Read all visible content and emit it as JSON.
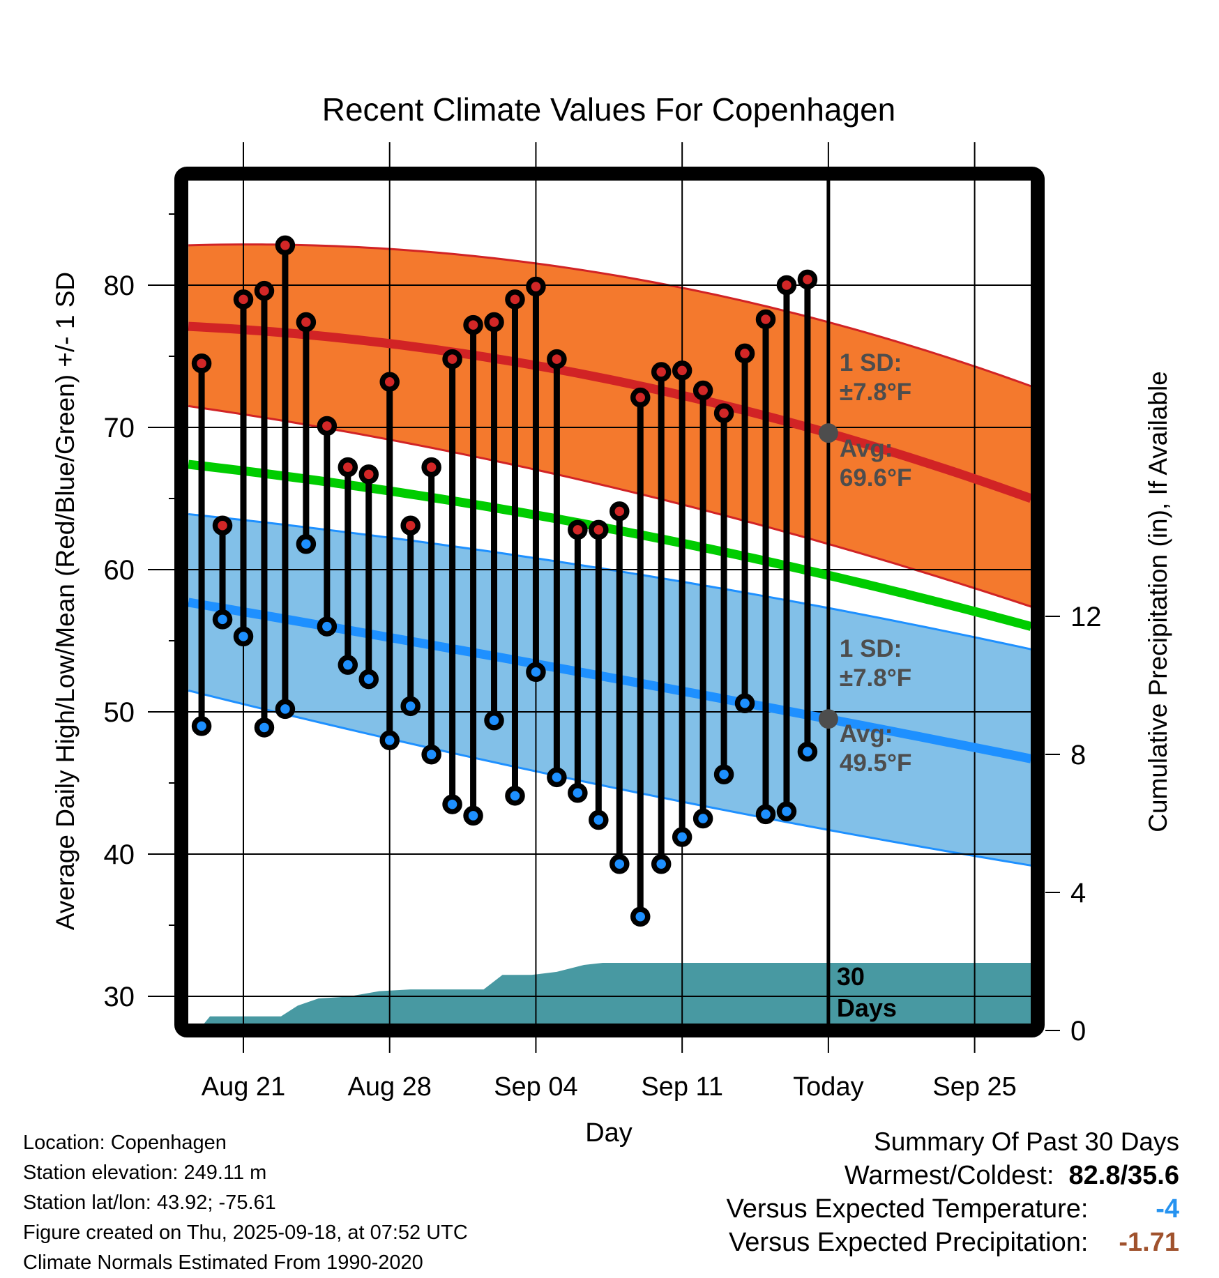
{
  "chart_data": {
    "type": "line",
    "title": "Recent Climate Values For Copenhagen",
    "xlabel": "Day",
    "ylabel": "Average Daily High/Low/Mean (Red/Blue/Green) +/- 1 SD",
    "y2label": "Cumulative Precipitation (in), If Available",
    "ylim": [
      28.1,
      87.3
    ],
    "y2lim": [
      0,
      24.6
    ],
    "yticks": [
      30,
      40,
      50,
      60,
      70,
      80
    ],
    "yticks_minor": [
      35,
      45,
      55,
      65,
      75,
      85
    ],
    "y2ticks": [
      0,
      4,
      8,
      12
    ],
    "xlim_day_offset": [
      -2.63,
      37.7
    ],
    "xticks": [
      {
        "label": "Aug 21",
        "day": 0
      },
      {
        "label": "Aug 28",
        "day": 7
      },
      {
        "label": "Sep 04",
        "day": 14
      },
      {
        "label": "Sep 11",
        "day": 21
      },
      {
        "label": "Today",
        "day": 28
      },
      {
        "label": "Sep 25",
        "day": 35
      }
    ],
    "grid": true,
    "today_day": 28,
    "days": [
      "Aug 19",
      "Aug 20",
      "Aug 21",
      "Aug 22",
      "Aug 23",
      "Aug 24",
      "Aug 25",
      "Aug 26",
      "Aug 27",
      "Aug 28",
      "Aug 29",
      "Aug 30",
      "Aug 31",
      "Sep 01",
      "Sep 02",
      "Sep 03",
      "Sep 04",
      "Sep 05",
      "Sep 06",
      "Sep 07",
      "Sep 08",
      "Sep 09",
      "Sep 10",
      "Sep 11",
      "Sep 12",
      "Sep 13",
      "Sep 14",
      "Sep 15",
      "Sep 16",
      "Sep 17"
    ],
    "day_offsets": [
      -2,
      -1,
      0,
      1,
      2,
      3,
      4,
      5,
      6,
      7,
      8,
      9,
      10,
      11,
      12,
      13,
      14,
      15,
      16,
      17,
      18,
      19,
      20,
      21,
      22,
      23,
      24,
      25,
      26,
      27
    ],
    "series": [
      {
        "name": "Daily High",
        "color": "#d22727",
        "values": [
          74.5,
          63.1,
          79.0,
          79.6,
          82.8,
          77.4,
          70.1,
          67.2,
          66.7,
          73.2,
          63.1,
          67.2,
          74.8,
          77.2,
          77.4,
          79.0,
          79.9,
          74.8,
          62.8,
          62.8,
          64.1,
          72.1,
          73.9,
          74.0,
          72.6,
          71.0,
          75.2,
          77.6,
          80.0,
          80.4
        ]
      },
      {
        "name": "Daily Low",
        "color": "#1e90ff",
        "values": [
          49.0,
          56.5,
          55.3,
          48.9,
          50.2,
          61.8,
          56.0,
          53.3,
          52.3,
          48.0,
          50.4,
          47.0,
          43.5,
          42.7,
          49.4,
          44.1,
          52.8,
          45.4,
          44.3,
          42.4,
          39.3,
          35.6,
          39.3,
          41.2,
          42.5,
          45.6,
          50.6,
          42.8,
          43.0,
          47.2
        ]
      }
    ],
    "normals": {
      "day_offsets": [
        -2.63,
        28,
        37.7
      ],
      "high_avg": [
        77.1,
        69.6,
        65.0
      ],
      "high_upper": [
        82.8,
        77.4,
        72.9
      ],
      "high_lower": [
        71.5,
        61.8,
        57.4
      ],
      "mean": [
        67.4,
        59.6,
        56.0
      ],
      "low_avg": [
        57.7,
        49.5,
        46.7
      ],
      "low_upper": [
        63.9,
        57.3,
        54.4
      ],
      "low_lower": [
        51.5,
        41.7,
        39.2
      ],
      "colors": {
        "high_band": "#f4792d",
        "high_line": "#d12325",
        "mean_line": "#00cc00",
        "low_band": "#82c0e8",
        "low_line": "#1e90ff",
        "today_marker": "#4d4d4d"
      }
    },
    "precipitation": {
      "color": "#4899a2",
      "day_offsets": [
        -2.15,
        -1.6,
        0,
        1.8,
        2.6,
        3.6,
        5.0,
        6.5,
        8.0,
        11.5,
        12.4,
        13.8,
        15.0,
        16.3,
        17.2,
        37.7
      ],
      "cumulative_in": [
        0.0,
        0.41,
        0.41,
        0.41,
        0.72,
        0.93,
        0.98,
        1.14,
        1.19,
        1.19,
        1.61,
        1.61,
        1.7,
        1.9,
        1.96,
        1.96
      ]
    },
    "annotations": {
      "high_sd": [
        "1 SD:",
        "±7.8°F"
      ],
      "high_avg": [
        "Avg:",
        "69.6°F"
      ],
      "low_sd": [
        "1 SD:",
        "±7.8°F"
      ],
      "low_avg": [
        "Avg:",
        "49.5°F"
      ],
      "days_label": [
        "30",
        "Days"
      ],
      "text_color": "#4d4d4d"
    }
  },
  "footer": {
    "lines": [
      "Location: Copenhagen",
      "Station elevation: 249.11 m",
      "Station lat/lon: 43.92; -75.61",
      "Figure created on Thu, 2025-09-18, at 07:52 UTC",
      "Climate Normals Estimated From 1990-2020"
    ]
  },
  "summary": {
    "title": "Summary Of Past 30 Days",
    "warmest_coldest_label": "Warmest/Coldest:",
    "warmest_coldest_value": "82.8/35.6",
    "temp_label": "Versus Expected Temperature:",
    "temp_value": "-4",
    "temp_color": "#2693f0",
    "precip_label": "Versus Expected Precipitation:",
    "precip_value": "-1.71",
    "precip_color": "#a0522d"
  }
}
